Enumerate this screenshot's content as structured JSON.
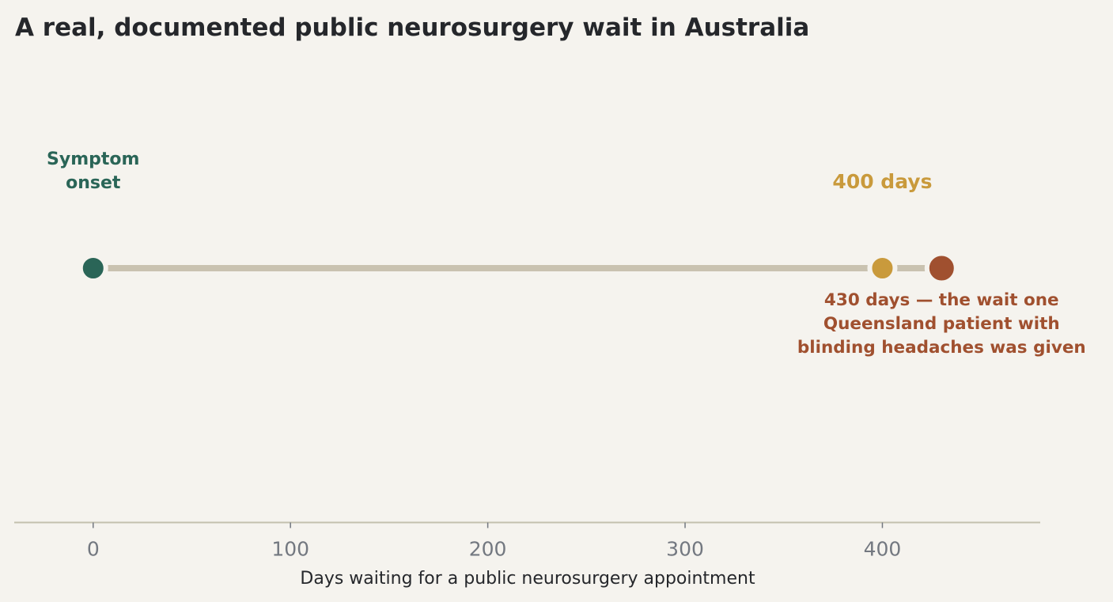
{
  "chart_data": {
    "type": "scatter",
    "title": "A real, documented public neurosurgery wait in Australia",
    "xlabel": "Days waiting for a public neurosurgery appointment",
    "ylabel": "",
    "xlim": [
      -40,
      480
    ],
    "xticks": [
      0,
      100,
      200,
      300,
      400
    ],
    "grid": false,
    "points": [
      {
        "x": 0,
        "color": "#2a6557",
        "size": "medium"
      },
      {
        "x": 400,
        "color": "#c99a3c",
        "size": "medium"
      },
      {
        "x": 430,
        "color": "#a0502f",
        "size": "large"
      }
    ],
    "timeline": {
      "from": 0,
      "to": 430,
      "color": "#c9c2b0"
    },
    "annotations": [
      {
        "x": 0,
        "position": "above",
        "lines": [
          "Symptom",
          "onset"
        ],
        "color": "#2a6557"
      },
      {
        "x": 400,
        "position": "above",
        "lines": [
          "400 days"
        ],
        "color": "#c99a3c"
      },
      {
        "x": 430,
        "position": "below",
        "lines": [
          "430 days — the wait one",
          "Queensland patient with",
          "blinding headaches was given"
        ],
        "color": "#a0502f"
      }
    ]
  },
  "colors": {
    "background": "#f5f3ee",
    "axis": "#c3c0ae",
    "tick_text": "#737880",
    "title_text": "#25272b"
  }
}
